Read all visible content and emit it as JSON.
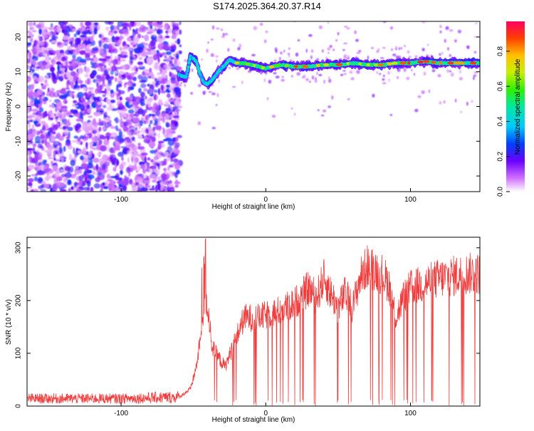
{
  "title": "S174.2025.364.20.37.R14",
  "charts": [
    {
      "type": "heatmap",
      "xlabel": "Height of straight line (km)",
      "ylabel": "Frequency (Hz)",
      "xlim": [
        -165,
        148
      ],
      "ylim": [
        -24.5,
        24.5
      ],
      "xticks": [
        -100,
        0,
        100
      ],
      "yticks": [
        -20,
        -10,
        0,
        10,
        20
      ],
      "track": [
        [
          -60,
          9
        ],
        [
          -55,
          8.5
        ],
        [
          -52,
          14.5
        ],
        [
          -48,
          13
        ],
        [
          -46,
          10
        ],
        [
          -43,
          7
        ],
        [
          -40,
          6.5
        ],
        [
          -37,
          7.5
        ],
        [
          -33,
          10
        ],
        [
          -28,
          12
        ],
        [
          -25,
          13.5
        ],
        [
          -20,
          12.5
        ],
        [
          -15,
          12.5
        ],
        [
          -10,
          12
        ],
        [
          -5,
          11.5
        ],
        [
          0,
          11
        ],
        [
          5,
          11.5
        ],
        [
          10,
          12
        ],
        [
          20,
          11.5
        ],
        [
          30,
          11.5
        ],
        [
          40,
          12
        ],
        [
          50,
          12
        ],
        [
          60,
          12.5
        ],
        [
          70,
          12
        ],
        [
          80,
          12
        ],
        [
          90,
          12.5
        ],
        [
          100,
          12.5
        ],
        [
          110,
          13
        ],
        [
          120,
          12.5
        ],
        [
          130,
          12.5
        ],
        [
          148,
          12.5
        ]
      ],
      "noise_region_end_km": -62
    },
    {
      "type": "line",
      "xlabel": "Height of straight line (km)",
      "ylabel": "SNR (10 * v/v)",
      "xlim": [
        -165,
        148
      ],
      "ylim": [
        0,
        320
      ],
      "xticks": [
        -100,
        0,
        100
      ],
      "yticks": [
        0,
        100,
        200,
        300
      ],
      "color": "#f03c3c",
      "envelope": [
        [
          -165,
          15
        ],
        [
          -100,
          15
        ],
        [
          -60,
          18
        ],
        [
          -52,
          35
        ],
        [
          -48,
          80
        ],
        [
          -44,
          160
        ],
        [
          -42,
          230
        ],
        [
          -40,
          200
        ],
        [
          -37,
          120
        ],
        [
          -33,
          100
        ],
        [
          -28,
          80
        ],
        [
          -23,
          120
        ],
        [
          -15,
          180
        ],
        [
          -5,
          180
        ],
        [
          0,
          185
        ],
        [
          10,
          195
        ],
        [
          20,
          210
        ],
        [
          30,
          240
        ],
        [
          35,
          220
        ],
        [
          40,
          260
        ],
        [
          50,
          200
        ],
        [
          55,
          230
        ],
        [
          60,
          200
        ],
        [
          65,
          260
        ],
        [
          70,
          285
        ],
        [
          75,
          280
        ],
        [
          80,
          270
        ],
        [
          85,
          250
        ],
        [
          90,
          180
        ],
        [
          95,
          220
        ],
        [
          100,
          240
        ],
        [
          110,
          250
        ],
        [
          120,
          260
        ],
        [
          130,
          265
        ],
        [
          140,
          270
        ],
        [
          148,
          270
        ]
      ]
    }
  ],
  "colorbar": {
    "label": "Normalized spectral amplitude",
    "ticks": [
      0.0,
      0.2,
      0.4,
      0.6,
      0.8
    ],
    "range": [
      0,
      0.97
    ]
  }
}
